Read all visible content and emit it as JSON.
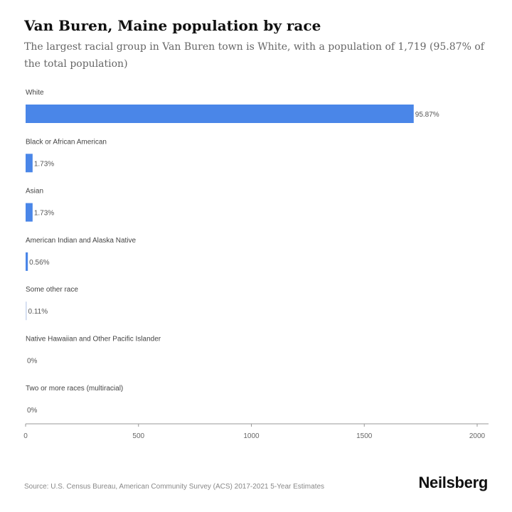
{
  "header": {
    "title": "Van Buren, Maine population by race",
    "subtitle": "The largest racial group in Van Buren town is White, with a population of 1,719 (95.87% of the total population)"
  },
  "footer": {
    "source": "Source: U.S. Census Bureau, American Community Survey (ACS) 2017-2021 5-Year Estimates",
    "brand": "Neilsberg"
  },
  "colors": {
    "bar": "#4a86e8",
    "axis": "#999999"
  },
  "chart_data": {
    "type": "bar",
    "orientation": "horizontal",
    "categories": [
      "White",
      "Black or African American",
      "Asian",
      "American Indian and Alaska Native",
      "Some other race",
      "Native Hawaiian and Other Pacific Islander",
      "Two or more races (multiracial)"
    ],
    "values": [
      1719,
      31,
      31,
      10,
      2,
      0,
      0
    ],
    "data_labels": [
      "95.87%",
      "1.73%",
      "1.73%",
      "0.56%",
      "0.11%",
      "0%",
      "0%"
    ],
    "xlim": [
      0,
      2000
    ],
    "xticks": [
      0,
      500,
      1000,
      1500,
      2000
    ],
    "grid": false
  }
}
